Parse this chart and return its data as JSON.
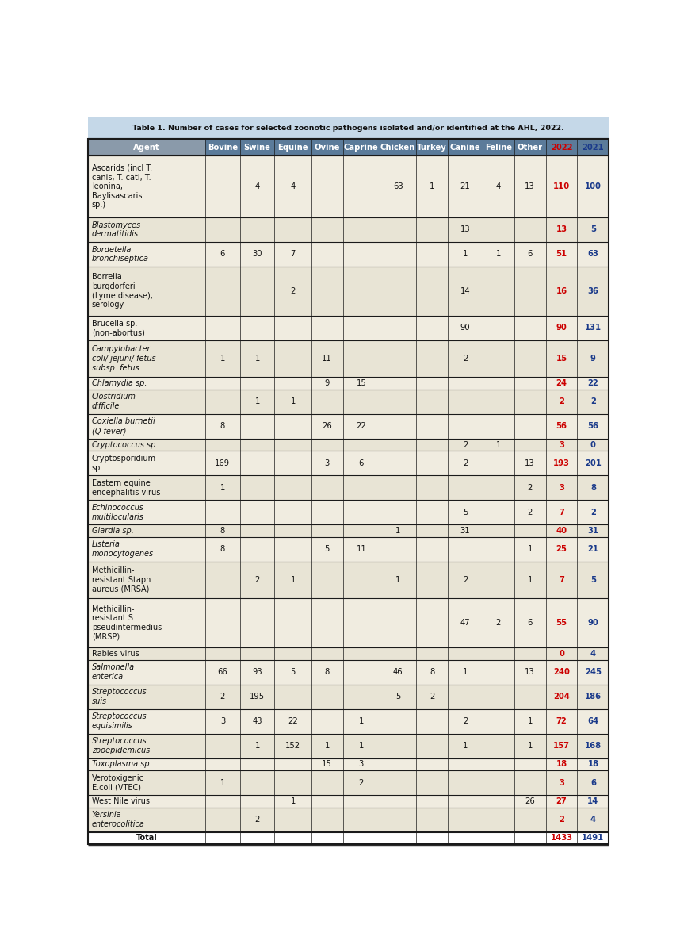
{
  "title": "Table 1. Number of cases for selected zoonotic pathogens isolated and/or identified at the AHL, 2022.",
  "columns": [
    "Agent",
    "Bovine",
    "Swine",
    "Equine",
    "Ovine",
    "Caprine",
    "Chicken",
    "Turkey",
    "Canine",
    "Feline",
    "Other",
    "2022",
    "2021"
  ],
  "rows": [
    {
      "agent": "Ascarids (incl T.\ncanis, T. cati, T.\nleonina,\nBaylisascaris\nsp.)",
      "italic": false,
      "shaded": false,
      "values": [
        "",
        "4",
        "4",
        "",
        "",
        "63",
        "1",
        "21",
        "4",
        "13",
        "110",
        "100"
      ]
    },
    {
      "agent": "Blastomyces\ndermatitidis",
      "italic": true,
      "shaded": true,
      "values": [
        "",
        "",
        "",
        "",
        "",
        "",
        "",
        "13",
        "",
        "",
        "13",
        "5"
      ]
    },
    {
      "agent": "Bordetella\nbronchiseptica",
      "italic": true,
      "shaded": false,
      "values": [
        "6",
        "30",
        "7",
        "",
        "",
        "",
        "",
        "1",
        "1",
        "6",
        "51",
        "63"
      ]
    },
    {
      "agent": "Borrelia\nburgdorferi\n(Lyme disease),\nserology",
      "italic": false,
      "shaded": true,
      "values": [
        "",
        "",
        "2",
        "",
        "",
        "",
        "",
        "14",
        "",
        "",
        "16",
        "36"
      ]
    },
    {
      "agent": "Brucella sp.\n(non-abortus)",
      "italic": false,
      "shaded": false,
      "values": [
        "",
        "",
        "",
        "",
        "",
        "",
        "",
        "90",
        "",
        "",
        "90",
        "131"
      ]
    },
    {
      "agent": "Campylobacter\ncoli/ jejuni/ fetus\nsubsp. fetus",
      "italic": true,
      "shaded": true,
      "values": [
        "1",
        "1",
        "",
        "11",
        "",
        "",
        "",
        "2",
        "",
        "",
        "15",
        "9"
      ]
    },
    {
      "agent": "Chlamydia sp.",
      "italic": true,
      "shaded": false,
      "values": [
        "",
        "",
        "",
        "9",
        "15",
        "",
        "",
        "",
        "",
        "",
        "24",
        "22"
      ]
    },
    {
      "agent": "Clostridium\ndifficile",
      "italic": true,
      "shaded": true,
      "values": [
        "",
        "1",
        "1",
        "",
        "",
        "",
        "",
        "",
        "",
        "",
        "2",
        "2"
      ]
    },
    {
      "agent": "Coxiella burnetii\n(Q fever)",
      "italic": true,
      "shaded": false,
      "values": [
        "8",
        "",
        "",
        "26",
        "22",
        "",
        "",
        "",
        "",
        "",
        "56",
        "56"
      ]
    },
    {
      "agent": "Cryptococcus sp.",
      "italic": true,
      "shaded": true,
      "values": [
        "",
        "",
        "",
        "",
        "",
        "",
        "",
        "2",
        "1",
        "",
        "3",
        "0"
      ]
    },
    {
      "agent": "Cryptosporidium\nsp.",
      "italic": false,
      "shaded": false,
      "values": [
        "169",
        "",
        "",
        "3",
        "6",
        "",
        "",
        "2",
        "",
        "13",
        "193",
        "201"
      ]
    },
    {
      "agent": "Eastern equine\nencephalitis virus",
      "italic": false,
      "shaded": true,
      "values": [
        "1",
        "",
        "",
        "",
        "",
        "",
        "",
        "",
        "",
        "2",
        "3",
        "8"
      ]
    },
    {
      "agent": "Echinococcus\nmultilocularis",
      "italic": true,
      "shaded": false,
      "values": [
        "",
        "",
        "",
        "",
        "",
        "",
        "",
        "5",
        "",
        "2",
        "7",
        "2"
      ]
    },
    {
      "agent": "Giardia sp.",
      "italic": true,
      "shaded": true,
      "values": [
        "8",
        "",
        "",
        "",
        "",
        "1",
        "",
        "31",
        "",
        "",
        "40",
        "31"
      ]
    },
    {
      "agent": "Listeria\nmonocytogenes",
      "italic": true,
      "shaded": false,
      "values": [
        "8",
        "",
        "",
        "5",
        "11",
        "",
        "",
        "",
        "",
        "1",
        "25",
        "21"
      ]
    },
    {
      "agent": "Methicillin-\nresistant Staph\naureus (MRSA)",
      "italic": false,
      "shaded": true,
      "values": [
        "",
        "2",
        "1",
        "",
        "",
        "1",
        "",
        "2",
        "",
        "1",
        "7",
        "5"
      ]
    },
    {
      "agent": "Methicillin-\nresistant S.\npseudintermedius\n(MRSP)",
      "italic": false,
      "shaded": false,
      "values": [
        "",
        "",
        "",
        "",
        "",
        "",
        "",
        "47",
        "2",
        "6",
        "55",
        "90"
      ]
    },
    {
      "agent": "Rabies virus",
      "italic": false,
      "shaded": true,
      "values": [
        "",
        "",
        "",
        "",
        "",
        "",
        "",
        "",
        "",
        "",
        "0",
        "4"
      ]
    },
    {
      "agent": "Salmonella\nenterica",
      "italic": true,
      "shaded": false,
      "values": [
        "66",
        "93",
        "5",
        "8",
        "",
        "46",
        "8",
        "1",
        "",
        "13",
        "240",
        "245"
      ]
    },
    {
      "agent": "Streptococcus\nsuis",
      "italic": true,
      "shaded": true,
      "values": [
        "2",
        "195",
        "",
        "",
        "",
        "5",
        "2",
        "",
        "",
        "",
        "204",
        "186"
      ]
    },
    {
      "agent": "Streptococcus\nequisimilis",
      "italic": true,
      "shaded": false,
      "values": [
        "3",
        "43",
        "22",
        "",
        "1",
        "",
        "",
        "2",
        "",
        "1",
        "72",
        "64"
      ]
    },
    {
      "agent": "Streptococcus\nzooepidemicus",
      "italic": true,
      "shaded": true,
      "values": [
        "",
        "1",
        "152",
        "1",
        "1",
        "",
        "",
        "1",
        "",
        "1",
        "157",
        "168"
      ]
    },
    {
      "agent": "Toxoplasma sp.",
      "italic": true,
      "shaded": false,
      "values": [
        "",
        "",
        "",
        "15",
        "3",
        "",
        "",
        "",
        "",
        "",
        "18",
        "18"
      ]
    },
    {
      "agent": "Verotoxigenic\nE.coli (VTEC)",
      "italic": false,
      "shaded": true,
      "values": [
        "1",
        "",
        "",
        "",
        "2",
        "",
        "",
        "",
        "",
        "",
        "3",
        "6"
      ]
    },
    {
      "agent": "West Nile virus",
      "italic": false,
      "shaded": false,
      "values": [
        "",
        "",
        "1",
        "",
        "",
        "",
        "",
        "",
        "",
        "26",
        "27",
        "14"
      ]
    },
    {
      "agent": "Yersinia\nenterocolitica",
      "italic": true,
      "shaded": true,
      "values": [
        "",
        "2",
        "",
        "",
        "",
        "",
        "",
        "",
        "",
        "",
        "2",
        "4"
      ]
    },
    {
      "agent": "Total",
      "italic": false,
      "shaded": false,
      "values": [
        "",
        "",
        "",
        "",
        "",
        "",
        "",
        "",
        "",
        "",
        "1433",
        "1491"
      ]
    }
  ],
  "header_bg": "#5b7b9a",
  "header_text": "#ffffff",
  "shaded_bg": "#e8e4d5",
  "unshaded_bg": "#f0ece0",
  "total_bg": "#ffffff",
  "col_2022_color": "#cc0000",
  "col_2021_color": "#1a3a8a",
  "title_bg": "#c5d8e8",
  "border_color": "#1a1a1a",
  "agent_col_color": "#8a9aaa",
  "col_widths_rel": [
    2.3,
    0.68,
    0.68,
    0.72,
    0.62,
    0.72,
    0.72,
    0.62,
    0.68,
    0.62,
    0.62,
    0.62,
    0.62
  ],
  "line_heights": [
    5,
    2,
    2,
    4,
    2,
    3,
    1,
    2,
    2,
    1,
    2,
    2,
    2,
    1,
    2,
    3,
    4,
    1,
    2,
    2,
    2,
    2,
    1,
    2,
    1,
    2,
    1
  ]
}
